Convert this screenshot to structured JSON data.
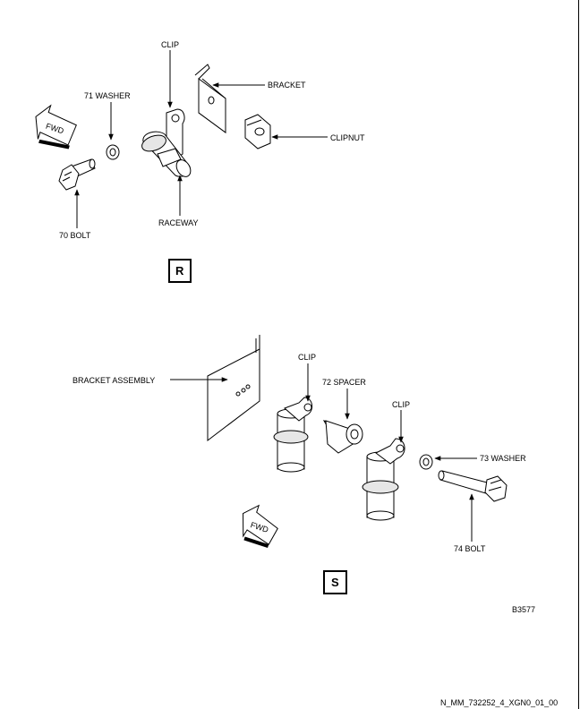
{
  "view_r": {
    "label": "R",
    "fwd": "FWD",
    "callouts": {
      "clip": "CLIP",
      "bracket": "BRACKET",
      "washer": "71 WASHER",
      "clipnut": "CLIPNUT",
      "bolt": "70 BOLT",
      "raceway": "RACEWAY"
    }
  },
  "view_s": {
    "label": "S",
    "fwd": "FWD",
    "callouts": {
      "clip_left": "CLIP",
      "bracket_assembly": "BRACKET ASSEMBLY",
      "spacer": "72 SPACER",
      "clip_right": "CLIP",
      "washer": "73 WASHER",
      "bolt": "74 BOLT"
    }
  },
  "figure_id": "B3577",
  "doc_id": "N_MM_732252_4_XGN0_01_00"
}
